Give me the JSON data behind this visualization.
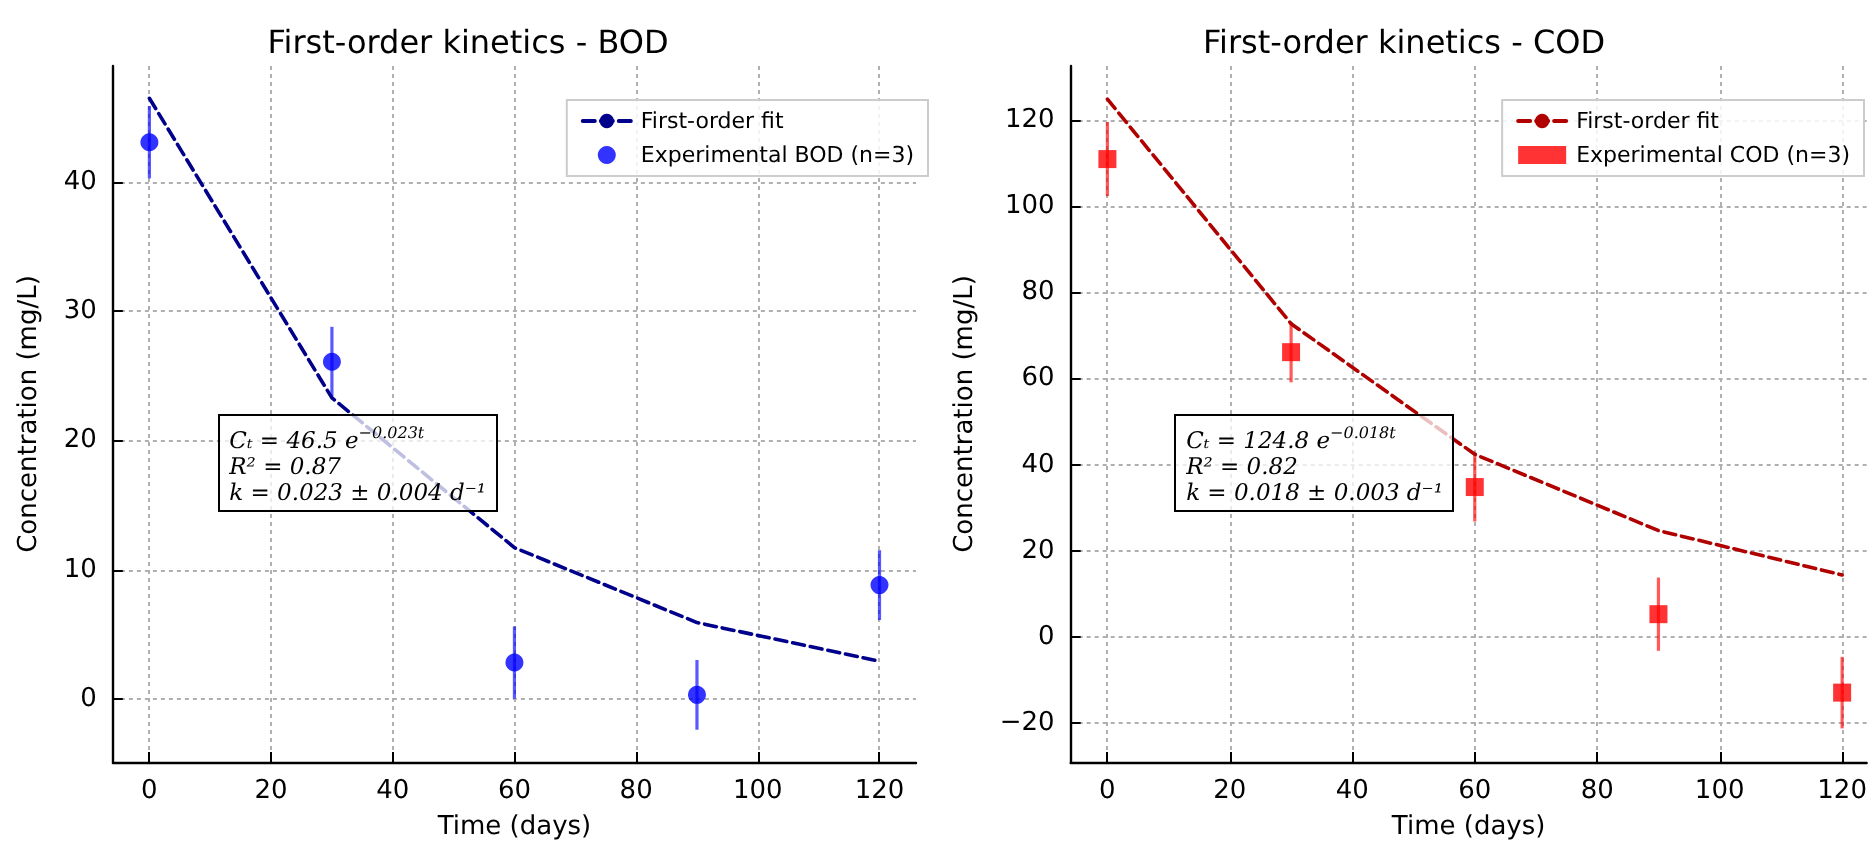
{
  "chart_data": [
    {
      "type": "scatter",
      "title": "First-order kinetics - BOD",
      "xlabel": "Time (days)",
      "ylabel": "Concentration (mg/L)",
      "x": [
        0,
        30,
        60,
        90,
        120
      ],
      "series": [
        {
          "name": "First-order fit",
          "type": "line",
          "color": "#00008b",
          "line_style": "dashed",
          "marker": "none",
          "values": [
            46.5,
            23.3,
            11.7,
            5.9,
            2.9
          ]
        },
        {
          "name": "Experimental BOD (n=3)",
          "color": "#0000ff",
          "marker": "circle",
          "values": [
            43.1,
            26.1,
            2.8,
            0.3,
            8.8
          ],
          "errors": [
            2.8,
            2.7,
            2.8,
            2.7,
            2.7
          ]
        }
      ],
      "xlim": [
        -6,
        126
      ],
      "xticks": [
        0,
        20,
        40,
        60,
        80,
        100,
        120
      ],
      "ylim": [
        -4.9,
        49
      ],
      "yticks": [
        0,
        10,
        20,
        30,
        40
      ],
      "grid": true,
      "legend": "top right",
      "annotations": [
        "Cₜ = 46.5 e$^{−0.023t}$",
        "R² = 0.87",
        "k = 0.023 ± 0.004 d⁻¹"
      ]
    },
    {
      "type": "scatter",
      "title": "First-order kinetics - COD",
      "xlabel": "Time (days)",
      "ylabel": "Concentration (mg/L)",
      "x": [
        0,
        30,
        60,
        90,
        120
      ],
      "series": [
        {
          "name": "First-order fit",
          "type": "line",
          "color": "#b00000",
          "line_style": "dashed",
          "marker": "none",
          "values": [
            124.8,
            72.7,
            42.4,
            24.7,
            14.4
          ]
        },
        {
          "name": "Experimental COD (n=3)",
          "color": "#ff0000",
          "marker": "square",
          "values": [
            110.9,
            66.1,
            34.8,
            5.3,
            -12.9
          ],
          "errors": [
            8.6,
            7,
            8,
            8.5,
            8.3
          ]
        }
      ],
      "xlim": [
        -6,
        124
      ],
      "xticks": [
        0,
        20,
        40,
        60,
        80,
        100,
        120
      ],
      "ylim": [
        -29,
        132.5
      ],
      "yticks": [
        -20,
        0,
        20,
        40,
        60,
        80,
        100,
        120
      ],
      "grid": true,
      "legend": "top right",
      "annotations": [
        "Cₜ = 124.8 e$^{−0.018t}$",
        "R² = 0.82",
        "k = 0.018 ± 0.003 d⁻¹"
      ]
    }
  ]
}
